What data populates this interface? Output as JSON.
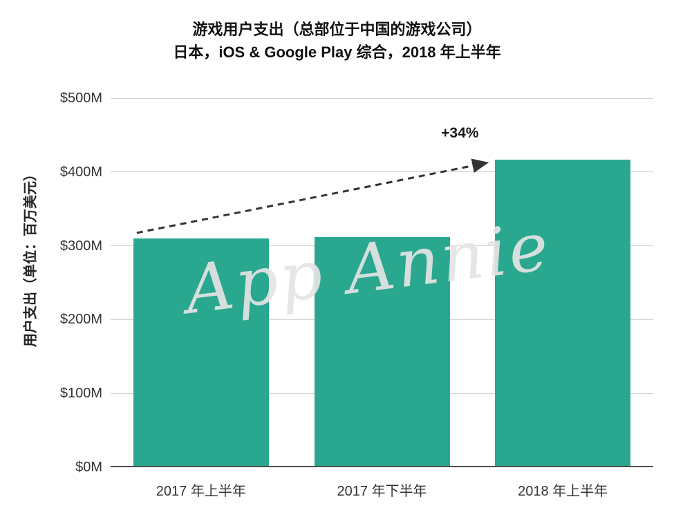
{
  "watermark": "App Annie",
  "annotation": "+34%",
  "colors": {
    "bar": "#2aa78f",
    "grid": "#d2d2d2",
    "axis": "#4d4d4d",
    "text": "#1a1a1a"
  },
  "chart_data": {
    "type": "bar",
    "title": "游戏用户支出（总部位于中国的游戏公司）",
    "subtitle": "日本，iOS & Google Play 综合，2018 年上半年",
    "categories": [
      "2017 年上半年",
      "2017 年下半年",
      "2018 年上半年"
    ],
    "values": [
      310,
      312,
      417
    ],
    "unit": "M USD",
    "ylabel": "用户支出（单位：百万美元）",
    "yticks": [
      0,
      100,
      200,
      300,
      400,
      500
    ],
    "ytick_labels": [
      "$0M",
      "$100M",
      "$200M",
      "$300M",
      "$400M",
      "$500M"
    ],
    "ylim": [
      0,
      500
    ],
    "grid": true,
    "legend": false,
    "annotations": [
      {
        "text": "+34%",
        "from_category": "2017 年上半年",
        "to_category": "2018 年上半年",
        "style": "dashed-arrow"
      }
    ]
  }
}
